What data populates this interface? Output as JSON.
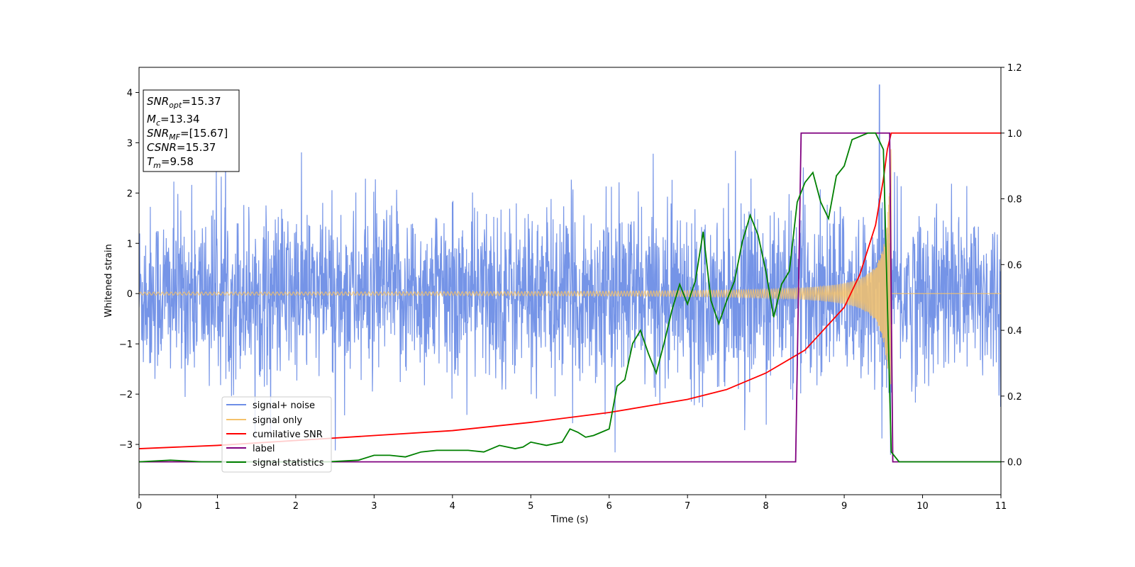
{
  "chart_data": {
    "type": "line",
    "xlabel": "Time (s)",
    "ylabel": "Whitened strain",
    "xlim": [
      0,
      11
    ],
    "ylim_left": [
      -4,
      4.5
    ],
    "ylim_right": [
      -0.1,
      1.2
    ],
    "xticks": [
      "0",
      "1",
      "2",
      "3",
      "4",
      "5",
      "6",
      "7",
      "8",
      "9",
      "10",
      "11"
    ],
    "yticks_left": [
      "−3",
      "−2",
      "−1",
      "0",
      "1",
      "2",
      "3",
      "4"
    ],
    "yticks_right": [
      "0.0",
      "0.2",
      "0.4",
      "0.6",
      "0.8",
      "1.0",
      "1.2"
    ],
    "annotation": {
      "snr_opt": {
        "sym": "SNR",
        "sub": "opt",
        "value": "=15.37"
      },
      "mc": {
        "sym": "M",
        "sub": "c",
        "value": "=13.34"
      },
      "snr_mf": {
        "sym": "SNR",
        "sub": "MF",
        "value": "=[15.67]"
      },
      "csnr": {
        "sym": "CSNR",
        "value": "=15.37"
      },
      "tm": {
        "sym": "T",
        "sub": "m",
        "value": "=9.58"
      }
    },
    "legend": {
      "placement": "lower-left",
      "items": [
        {
          "label": "signal+ noise",
          "color": "#6e8ee6"
        },
        {
          "label": "signal only",
          "color": "#f5c26b"
        },
        {
          "label": "cumilative SNR",
          "color": "#ff0000"
        },
        {
          "label": "label",
          "color": "#800080"
        },
        {
          "label": "signal statistics",
          "color": "#008000"
        }
      ]
    },
    "series": [
      {
        "name": "signal+ noise",
        "axis": "left",
        "color": "#6e8ee6",
        "noise_sigma": 0.85,
        "spike_max": 4.15,
        "spike_time": 9.45
      },
      {
        "name": "signal only",
        "axis": "left",
        "color": "#f5c26b",
        "t_merge": 9.6,
        "amplitude_start": 0.02,
        "amplitude_peak": 3.2
      },
      {
        "name": "cumilative SNR",
        "axis": "right",
        "color": "#ff0000",
        "x": [
          0,
          1,
          2,
          3,
          4,
          5,
          6,
          6.5,
          7,
          7.5,
          8,
          8.5,
          9,
          9.2,
          9.4,
          9.5,
          9.55,
          9.6,
          11
        ],
        "y": [
          0.04,
          0.05,
          0.065,
          0.08,
          0.095,
          0.12,
          0.15,
          0.17,
          0.19,
          0.22,
          0.27,
          0.34,
          0.47,
          0.57,
          0.72,
          0.86,
          0.95,
          1.0,
          1.0
        ]
      },
      {
        "name": "label",
        "axis": "right",
        "color": "#800080",
        "x": [
          0,
          8.38,
          8.45,
          9.58,
          9.62,
          11
        ],
        "y": [
          0,
          0,
          1,
          1,
          0,
          0
        ]
      },
      {
        "name": "signal statistics",
        "axis": "right",
        "color": "#008000",
        "x": [
          0,
          0.4,
          0.8,
          1.2,
          1.6,
          2.0,
          2.4,
          2.8,
          3.0,
          3.2,
          3.4,
          3.6,
          3.8,
          4.0,
          4.2,
          4.4,
          4.5,
          4.6,
          4.8,
          4.9,
          5.0,
          5.1,
          5.2,
          5.3,
          5.4,
          5.5,
          5.6,
          5.7,
          5.8,
          5.9,
          6.0,
          6.1,
          6.2,
          6.3,
          6.4,
          6.5,
          6.6,
          6.7,
          6.8,
          6.9,
          7.0,
          7.1,
          7.2,
          7.3,
          7.4,
          7.5,
          7.6,
          7.7,
          7.8,
          7.9,
          8.0,
          8.1,
          8.2,
          8.3,
          8.4,
          8.5,
          8.6,
          8.7,
          8.8,
          8.9,
          9.0,
          9.1,
          9.2,
          9.3,
          9.4,
          9.5,
          9.6,
          9.7,
          9.8,
          11
        ],
        "y": [
          0.0,
          0.005,
          0.0,
          0.0,
          0.0,
          0.0,
          0.0,
          0.005,
          0.02,
          0.02,
          0.015,
          0.03,
          0.035,
          0.035,
          0.035,
          0.03,
          0.04,
          0.05,
          0.04,
          0.045,
          0.06,
          0.055,
          0.05,
          0.055,
          0.06,
          0.1,
          0.09,
          0.075,
          0.08,
          0.09,
          0.1,
          0.23,
          0.25,
          0.36,
          0.4,
          0.33,
          0.27,
          0.36,
          0.46,
          0.54,
          0.48,
          0.55,
          0.7,
          0.49,
          0.42,
          0.49,
          0.55,
          0.67,
          0.75,
          0.69,
          0.58,
          0.44,
          0.54,
          0.58,
          0.79,
          0.85,
          0.88,
          0.79,
          0.74,
          0.87,
          0.9,
          0.98,
          0.99,
          1.0,
          1.0,
          0.95,
          0.03,
          0.0,
          0.0,
          0.0
        ]
      }
    ]
  }
}
